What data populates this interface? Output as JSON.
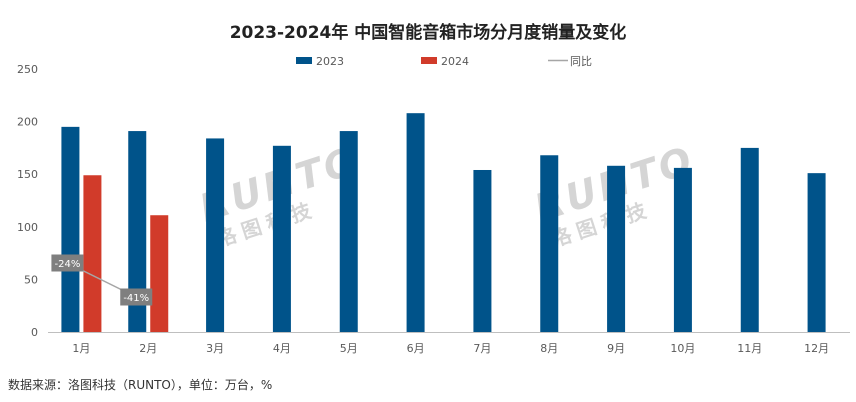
{
  "chart_data": {
    "type": "bar",
    "title": "2023-2024年 中国智能音箱市场分月度销量及变化",
    "categories": [
      "1月",
      "2月",
      "3月",
      "4月",
      "5月",
      "6月",
      "7月",
      "8月",
      "9月",
      "10月",
      "11月",
      "12月"
    ],
    "series": [
      {
        "name": "2023",
        "color": "#00538A",
        "values": [
          195,
          191,
          184,
          177,
          191,
          208,
          154,
          168,
          158,
          156,
          175,
          151
        ]
      },
      {
        "name": "2024",
        "color": "#D13B2A",
        "values": [
          149,
          111,
          null,
          null,
          null,
          null,
          null,
          null,
          null,
          null,
          null,
          null
        ]
      }
    ],
    "line_series": {
      "name": "同比",
      "color": "#A6A6A6",
      "values": [
        -24,
        -41
      ]
    },
    "data_labels": [
      "-24%",
      "-41%"
    ],
    "ylim": [
      0,
      250
    ],
    "yticks": [
      0,
      50,
      100,
      150,
      200,
      250
    ],
    "grid": false,
    "legend_position": "top-center",
    "watermark": {
      "text": "RUNTO",
      "subtext": "洛图科技"
    },
    "source": "数据来源：洛图科技（RUNTO），单位：万台，%"
  }
}
